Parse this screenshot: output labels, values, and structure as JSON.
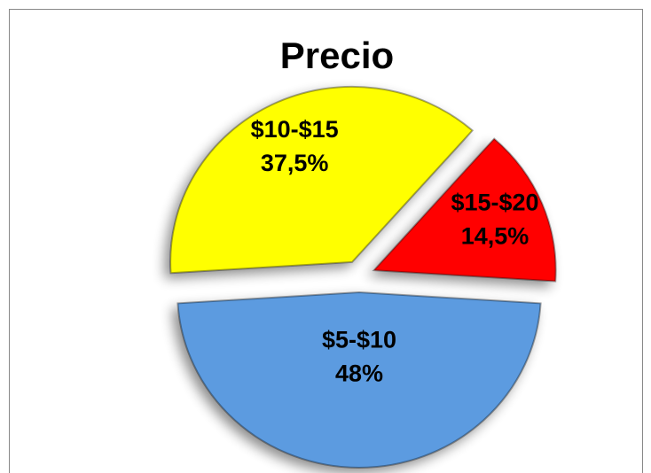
{
  "chart_data": {
    "type": "pie",
    "title": "Precio",
    "categories": [
      "$5-$10",
      "$10-$15",
      "$15-$20"
    ],
    "values": [
      48,
      37.5,
      14.5
    ],
    "value_labels": [
      "48%",
      "37,5%",
      "14,5%"
    ],
    "colors": [
      "#5b9be0",
      "#ffff00",
      "#ff0000"
    ]
  }
}
